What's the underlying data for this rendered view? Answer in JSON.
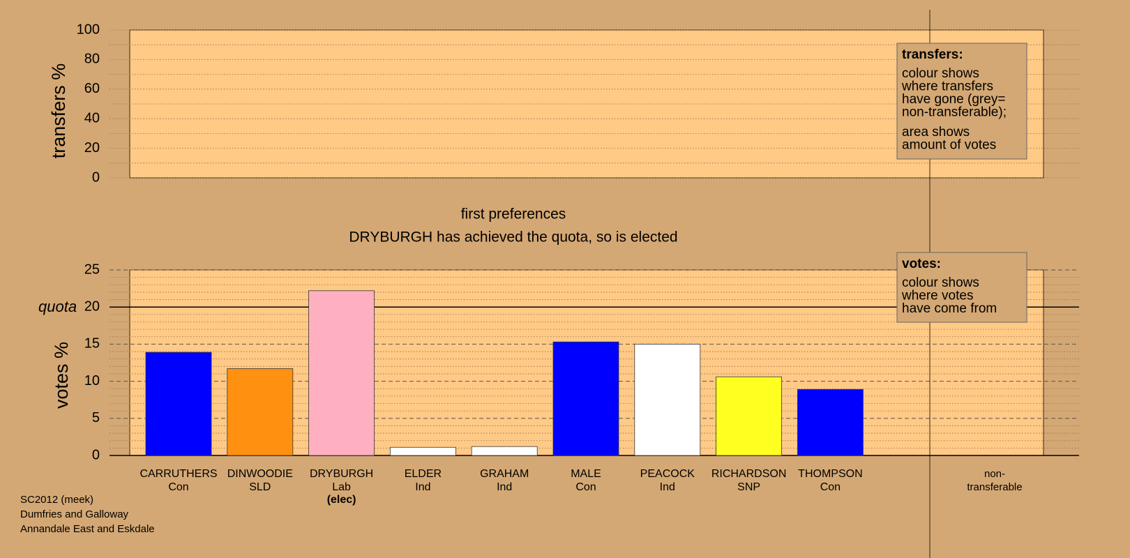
{
  "chart_data": [
    {
      "type": "empty",
      "ylabel": "transfers %",
      "ylim": [
        0,
        100
      ],
      "yticks": [
        0,
        20,
        40,
        60,
        80,
        100
      ],
      "grid": true,
      "note": {
        "title": "transfers:",
        "lines": [
          [
            "colour shows",
            "where transfers",
            "have gone (grey=",
            "non-transferable);"
          ],
          [
            "area shows",
            "amount of votes"
          ]
        ]
      }
    },
    {
      "type": "bar",
      "title": "first preferences",
      "subtitle": "DRYBURGH has achieved the quota, so is elected",
      "ylabel": "votes %",
      "ylim": [
        0,
        25
      ],
      "yticks": [
        0,
        5,
        10,
        15,
        20,
        25
      ],
      "grid": true,
      "quota": {
        "label": "quota",
        "value": 20
      },
      "categories": [
        "CARRUTHERS",
        "DINWOODIE",
        "DRYBURGH",
        "ELDER",
        "GRAHAM",
        "MALE",
        "PEACOCK",
        "RICHARDSON",
        "THOMPSON"
      ],
      "parties": [
        "Con",
        "SLD",
        "Lab",
        "Ind",
        "Ind",
        "Con",
        "Ind",
        "SNP",
        "Con"
      ],
      "status": [
        null,
        null,
        "(elec)",
        null,
        null,
        null,
        null,
        null,
        null
      ],
      "values": [
        13.9,
        11.7,
        22.2,
        1.1,
        1.2,
        15.3,
        15.0,
        10.6,
        8.9
      ],
      "colors": [
        "#0000ff",
        "#ff9010",
        "#ffb0c0",
        "#ffffff",
        "#ffffff",
        "#0000ff",
        "#ffffff",
        "#ffff20",
        "#0000ff"
      ],
      "nontransferable_label": [
        "non-",
        "transferable"
      ],
      "note": {
        "title": "votes:",
        "lines": [
          [
            "colour shows",
            "where votes",
            "have come from"
          ]
        ]
      }
    }
  ],
  "footer": [
    "SC2012 (meek)",
    "Dumfries and Galloway",
    "Annandale East and Eskdale"
  ]
}
